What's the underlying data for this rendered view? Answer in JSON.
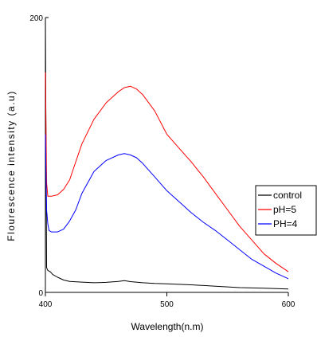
{
  "chart_data": {
    "type": "line",
    "title": "",
    "xlabel": "Wavelength(n.m)",
    "ylabel": "Flourescence intensity (a.u)",
    "xlim": [
      400,
      600
    ],
    "ylim": [
      0,
      200
    ],
    "x_ticks": [
      "400",
      "500",
      "600"
    ],
    "y_ticks": [
      "0",
      "200"
    ],
    "grid": false,
    "legend_position": "right",
    "series": [
      {
        "name": "control",
        "color": "#000000",
        "x": [
          400,
          401,
          402,
          404,
          406,
          410,
          415,
          420,
          430,
          440,
          450,
          460,
          465,
          470,
          480,
          490,
          500,
          520,
          540,
          560,
          580,
          600
        ],
        "y": [
          200,
          18,
          16,
          15,
          13,
          11,
          9,
          8,
          7.5,
          7,
          7.3,
          8,
          8.5,
          7.8,
          7,
          6.5,
          6.2,
          5.5,
          4.5,
          3.5,
          3,
          2.5
        ]
      },
      {
        "name": "pH=5",
        "color": "#ff0000",
        "x": [
          400,
          401,
          402,
          405,
          410,
          415,
          420,
          425,
          430,
          440,
          450,
          460,
          465,
          470,
          475,
          480,
          490,
          500,
          510,
          520,
          530,
          540,
          550,
          560,
          570,
          580,
          590,
          600
        ],
        "y": [
          160,
          80,
          70,
          70,
          71,
          75,
          82,
          95,
          108,
          126,
          138,
          146,
          149,
          150,
          148,
          144,
          132,
          115,
          105,
          95,
          84,
          72,
          60,
          48,
          38,
          28,
          21,
          15
        ]
      },
      {
        "name": "PH=4",
        "color": "#0000ff",
        "x": [
          400,
          401,
          402,
          403,
          405,
          410,
          415,
          420,
          425,
          430,
          440,
          450,
          460,
          465,
          470,
          475,
          480,
          490,
          500,
          510,
          520,
          530,
          540,
          550,
          560,
          570,
          580,
          590,
          600
        ],
        "y": [
          115,
          60,
          50,
          45,
          44,
          44,
          46,
          52,
          60,
          72,
          88,
          96,
          100,
          101,
          100,
          98,
          94,
          84,
          74,
          66,
          58,
          51,
          45,
          38,
          31,
          24,
          19,
          14,
          10
        ]
      }
    ]
  }
}
